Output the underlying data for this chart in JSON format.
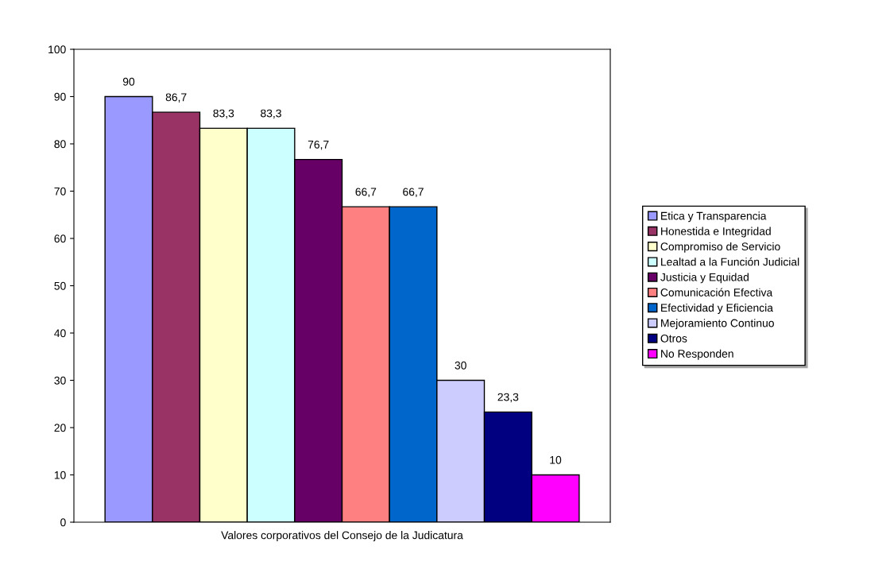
{
  "chart_data": {
    "type": "bar",
    "categories": [
      "Valores corporativos del Consejo de la Judicatura"
    ],
    "ylim": [
      0,
      100
    ],
    "yticks": [
      0,
      10,
      20,
      30,
      40,
      50,
      60,
      70,
      80,
      90,
      100
    ],
    "legend": "right",
    "grid": false,
    "series": [
      {
        "name": "Etica y Transparencia",
        "color": "#9999ff",
        "values": [
          90
        ],
        "value_labels": [
          "90"
        ]
      },
      {
        "name": "Honestida e Integridad",
        "color": "#993366",
        "values": [
          86.7
        ],
        "value_labels": [
          "86,7"
        ]
      },
      {
        "name": "Compromiso de Servicio",
        "color": "#ffffcc",
        "values": [
          83.3
        ],
        "value_labels": [
          "83,3"
        ]
      },
      {
        "name": "Lealtad a la Función Judicial",
        "color": "#ccffff",
        "values": [
          83.3
        ],
        "value_labels": [
          "83,3"
        ]
      },
      {
        "name": "Justicia y Equidad",
        "color": "#660066",
        "values": [
          76.7
        ],
        "value_labels": [
          "76,7"
        ]
      },
      {
        "name": "Comunicación Efectiva",
        "color": "#ff8080",
        "values": [
          66.7
        ],
        "value_labels": [
          "66,7"
        ]
      },
      {
        "name": "Efectividad y Eficiencia",
        "color": "#0066cc",
        "values": [
          66.7
        ],
        "value_labels": [
          "66,7"
        ]
      },
      {
        "name": "Mejoramiento Continuo",
        "color": "#ccccff",
        "values": [
          30
        ],
        "value_labels": [
          "30"
        ]
      },
      {
        "name": "Otros",
        "color": "#000080",
        "values": [
          23.3
        ],
        "value_labels": [
          "23,3"
        ]
      },
      {
        "name": "No Responden",
        "color": "#ff00ff",
        "values": [
          10
        ],
        "value_labels": [
          "10"
        ]
      }
    ]
  }
}
